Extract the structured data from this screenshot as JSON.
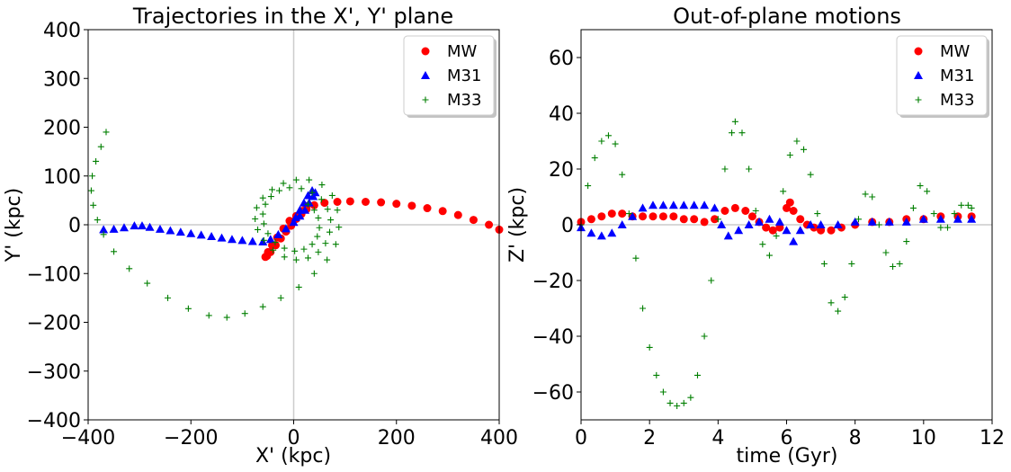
{
  "chart_data": [
    {
      "type": "scatter",
      "title": "Trajectories in the X', Y' plane",
      "xlabel": "X' (kpc)",
      "ylabel": "Y' (kpc)",
      "xlim": [
        -400,
        400
      ],
      "ylim": [
        -400,
        400
      ],
      "xticks": [
        "−400",
        "−200",
        "0",
        "200",
        "400"
      ],
      "yticks": [
        "400",
        "300",
        "200",
        "100",
        "0",
        "−100",
        "−200",
        "−300",
        "−400"
      ],
      "reference_lines": {
        "x": 0,
        "y": 0
      },
      "legend_position": "top-right",
      "series": [
        {
          "name": "MW",
          "color": "#ff0000",
          "marker": "circle",
          "points": [
            [
              400,
              -10
            ],
            [
              380,
              0
            ],
            [
              350,
              10
            ],
            [
              320,
              20
            ],
            [
              290,
              28
            ],
            [
              260,
              34
            ],
            [
              230,
              39
            ],
            [
              200,
              43
            ],
            [
              170,
              46
            ],
            [
              140,
              47
            ],
            [
              110,
              48
            ],
            [
              85,
              47
            ],
            [
              60,
              45
            ],
            [
              40,
              40
            ],
            [
              25,
              32
            ],
            [
              15,
              22
            ],
            [
              5,
              12
            ],
            [
              -5,
              -2
            ],
            [
              -15,
              -14
            ],
            [
              -25,
              -28
            ],
            [
              -35,
              -42
            ],
            [
              -45,
              -56
            ],
            [
              -52,
              -64
            ],
            [
              -55,
              -66
            ],
            [
              -50,
              -56
            ],
            [
              -42,
              -42
            ],
            [
              -32,
              -26
            ],
            [
              -20,
              -8
            ],
            [
              -8,
              8
            ],
            [
              5,
              18
            ],
            [
              15,
              28
            ],
            [
              25,
              38
            ]
          ]
        },
        {
          "name": "M31",
          "color": "#0000ff",
          "marker": "triangle",
          "points": [
            [
              -370,
              -10
            ],
            [
              -350,
              -9
            ],
            [
              -330,
              -6
            ],
            [
              -310,
              -2
            ],
            [
              -295,
              -2
            ],
            [
              -280,
              -5
            ],
            [
              -260,
              -9
            ],
            [
              -240,
              -12
            ],
            [
              -220,
              -15
            ],
            [
              -200,
              -18
            ],
            [
              -180,
              -21
            ],
            [
              -160,
              -24
            ],
            [
              -140,
              -27
            ],
            [
              -120,
              -30
            ],
            [
              -100,
              -32
            ],
            [
              -80,
              -34
            ],
            [
              -60,
              -35
            ],
            [
              -45,
              -30
            ],
            [
              -30,
              -20
            ],
            [
              -15,
              -8
            ],
            [
              0,
              5
            ],
            [
              12,
              18
            ],
            [
              22,
              30
            ],
            [
              30,
              45
            ],
            [
              38,
              58
            ],
            [
              42,
              66
            ],
            [
              36,
              70
            ],
            [
              28,
              60
            ],
            [
              20,
              45
            ],
            [
              12,
              30
            ],
            [
              4,
              15
            ]
          ]
        },
        {
          "name": "M33",
          "color": "#007f00",
          "marker": "plus",
          "points": [
            [
              -365,
              190
            ],
            [
              -375,
              160
            ],
            [
              -385,
              130
            ],
            [
              -392,
              100
            ],
            [
              -394,
              70
            ],
            [
              -390,
              40
            ],
            [
              -382,
              10
            ],
            [
              -370,
              -20
            ],
            [
              -350,
              -55
            ],
            [
              -320,
              -90
            ],
            [
              -285,
              -120
            ],
            [
              -245,
              -150
            ],
            [
              -205,
              -172
            ],
            [
              -165,
              -186
            ],
            [
              -130,
              -190
            ],
            [
              -95,
              -182
            ],
            [
              -60,
              -168
            ],
            [
              -25,
              -150
            ],
            [
              10,
              -128
            ],
            [
              40,
              -100
            ],
            [
              65,
              -72
            ],
            [
              82,
              -40
            ],
            [
              88,
              -5
            ],
            [
              85,
              30
            ],
            [
              75,
              60
            ],
            [
              55,
              82
            ],
            [
              30,
              92
            ],
            [
              5,
              92
            ],
            [
              -20,
              85
            ],
            [
              -42,
              72
            ],
            [
              -60,
              55
            ],
            [
              -72,
              35
            ],
            [
              -75,
              12
            ],
            [
              -70,
              -10
            ],
            [
              -58,
              -32
            ],
            [
              -40,
              -52
            ],
            [
              -18,
              -66
            ],
            [
              5,
              -72
            ],
            [
              28,
              -68
            ],
            [
              48,
              -56
            ],
            [
              62,
              -38
            ],
            [
              70,
              -15
            ],
            [
              72,
              10
            ],
            [
              66,
              32
            ],
            [
              54,
              52
            ],
            [
              36,
              66
            ],
            [
              15,
              74
            ],
            [
              -8,
              76
            ],
            [
              -28,
              70
            ],
            [
              -44,
              58
            ],
            [
              -55,
              42
            ],
            [
              -60,
              22
            ],
            [
              -58,
              2
            ],
            [
              -50,
              -18
            ],
            [
              -36,
              -36
            ],
            [
              -18,
              -48
            ],
            [
              2,
              -54
            ],
            [
              20,
              -50
            ],
            [
              36,
              -40
            ],
            [
              46,
              -24
            ],
            [
              50,
              -6
            ],
            [
              48,
              14
            ],
            [
              40,
              30
            ],
            [
              28,
              42
            ]
          ]
        }
      ]
    },
    {
      "type": "scatter",
      "title": "Out-of-plane motions",
      "xlabel": "time (Gyr)",
      "ylabel": "Z' (kpc)",
      "xlim": [
        0,
        12
      ],
      "ylim": [
        -70,
        70
      ],
      "xticks": [
        "0",
        "2",
        "4",
        "6",
        "8",
        "10",
        "12"
      ],
      "yticks": [
        "60",
        "40",
        "20",
        "0",
        "−20",
        "−40",
        "−60"
      ],
      "reference_lines": {
        "y": 0
      },
      "legend_position": "top-right",
      "series": [
        {
          "name": "MW",
          "color": "#ff0000",
          "marker": "circle",
          "points": [
            [
              0,
              1
            ],
            [
              0.3,
              2
            ],
            [
              0.6,
              3
            ],
            [
              0.9,
              4
            ],
            [
              1.2,
              4
            ],
            [
              1.5,
              3
            ],
            [
              1.8,
              3
            ],
            [
              2.1,
              3
            ],
            [
              2.4,
              3
            ],
            [
              2.7,
              3
            ],
            [
              3.0,
              2
            ],
            [
              3.3,
              2
            ],
            [
              3.6,
              1
            ],
            [
              3.9,
              2
            ],
            [
              4.2,
              5
            ],
            [
              4.5,
              6
            ],
            [
              4.8,
              5
            ],
            [
              5.0,
              3
            ],
            [
              5.2,
              1
            ],
            [
              5.4,
              -1
            ],
            [
              5.6,
              -2
            ],
            [
              5.8,
              -1
            ],
            [
              6.0,
              6
            ],
            [
              6.1,
              8
            ],
            [
              6.2,
              5
            ],
            [
              6.4,
              2
            ],
            [
              6.6,
              0
            ],
            [
              6.8,
              -1
            ],
            [
              7.0,
              -2
            ],
            [
              7.3,
              -2
            ],
            [
              7.6,
              -1
            ],
            [
              8.0,
              0
            ],
            [
              8.5,
              1
            ],
            [
              9.0,
              1
            ],
            [
              9.5,
              2
            ],
            [
              10.0,
              2
            ],
            [
              10.5,
              3
            ],
            [
              11.0,
              3
            ],
            [
              11.4,
              3
            ]
          ]
        },
        {
          "name": "M31",
          "color": "#0000ff",
          "marker": "triangle",
          "points": [
            [
              0,
              -1
            ],
            [
              0.3,
              -3
            ],
            [
              0.6,
              -4
            ],
            [
              0.9,
              -3
            ],
            [
              1.2,
              0
            ],
            [
              1.5,
              3
            ],
            [
              1.8,
              6
            ],
            [
              2.1,
              7
            ],
            [
              2.4,
              7
            ],
            [
              2.7,
              7
            ],
            [
              3.0,
              7
            ],
            [
              3.3,
              7
            ],
            [
              3.6,
              7
            ],
            [
              3.9,
              6
            ],
            [
              4.1,
              0
            ],
            [
              4.3,
              -4
            ],
            [
              4.6,
              -2
            ],
            [
              4.9,
              0
            ],
            [
              5.2,
              1
            ],
            [
              5.5,
              2
            ],
            [
              5.8,
              1
            ],
            [
              6.0,
              -2
            ],
            [
              6.2,
              -6
            ],
            [
              6.4,
              -2
            ],
            [
              6.7,
              0
            ],
            [
              7.0,
              0
            ],
            [
              7.5,
              0
            ],
            [
              8.0,
              1
            ],
            [
              8.5,
              1
            ],
            [
              9.0,
              1
            ],
            [
              9.5,
              1
            ],
            [
              10.0,
              2
            ],
            [
              10.5,
              2
            ],
            [
              11.0,
              2
            ],
            [
              11.4,
              2
            ]
          ]
        },
        {
          "name": "M33",
          "color": "#007f00",
          "marker": "plus",
          "points": [
            [
              0,
              0
            ],
            [
              0.2,
              14
            ],
            [
              0.4,
              24
            ],
            [
              0.6,
              30
            ],
            [
              0.8,
              32
            ],
            [
              1.0,
              29
            ],
            [
              1.2,
              18
            ],
            [
              1.4,
              4
            ],
            [
              1.6,
              -12
            ],
            [
              1.8,
              -30
            ],
            [
              2.0,
              -44
            ],
            [
              2.2,
              -54
            ],
            [
              2.4,
              -60
            ],
            [
              2.6,
              -64
            ],
            [
              2.8,
              -65
            ],
            [
              3.0,
              -64
            ],
            [
              3.2,
              -62
            ],
            [
              3.4,
              -54
            ],
            [
              3.6,
              -40
            ],
            [
              3.8,
              -20
            ],
            [
              4.0,
              2
            ],
            [
              4.2,
              20
            ],
            [
              4.4,
              33
            ],
            [
              4.5,
              37
            ],
            [
              4.7,
              33
            ],
            [
              4.9,
              20
            ],
            [
              5.1,
              5
            ],
            [
              5.3,
              -7
            ],
            [
              5.5,
              -11
            ],
            [
              5.7,
              -4
            ],
            [
              5.9,
              12
            ],
            [
              6.1,
              25
            ],
            [
              6.3,
              30
            ],
            [
              6.5,
              27
            ],
            [
              6.7,
              18
            ],
            [
              6.9,
              4
            ],
            [
              7.1,
              -14
            ],
            [
              7.3,
              -28
            ],
            [
              7.5,
              -31
            ],
            [
              7.7,
              -26
            ],
            [
              7.9,
              -14
            ],
            [
              8.1,
              2
            ],
            [
              8.3,
              11
            ],
            [
              8.5,
              10
            ],
            [
              8.7,
              0
            ],
            [
              8.9,
              -10
            ],
            [
              9.1,
              -15
            ],
            [
              9.3,
              -14
            ],
            [
              9.5,
              -6
            ],
            [
              9.7,
              6
            ],
            [
              9.9,
              14
            ],
            [
              10.1,
              12
            ],
            [
              10.3,
              4
            ],
            [
              10.5,
              -1
            ],
            [
              10.7,
              -1
            ],
            [
              10.9,
              4
            ],
            [
              11.1,
              7
            ],
            [
              11.3,
              7
            ],
            [
              11.4,
              6
            ]
          ]
        }
      ]
    }
  ],
  "colors": {
    "MW": "#ff0000",
    "M31": "#0000ff",
    "M33": "#007f00",
    "refline": "#cccccc"
  }
}
